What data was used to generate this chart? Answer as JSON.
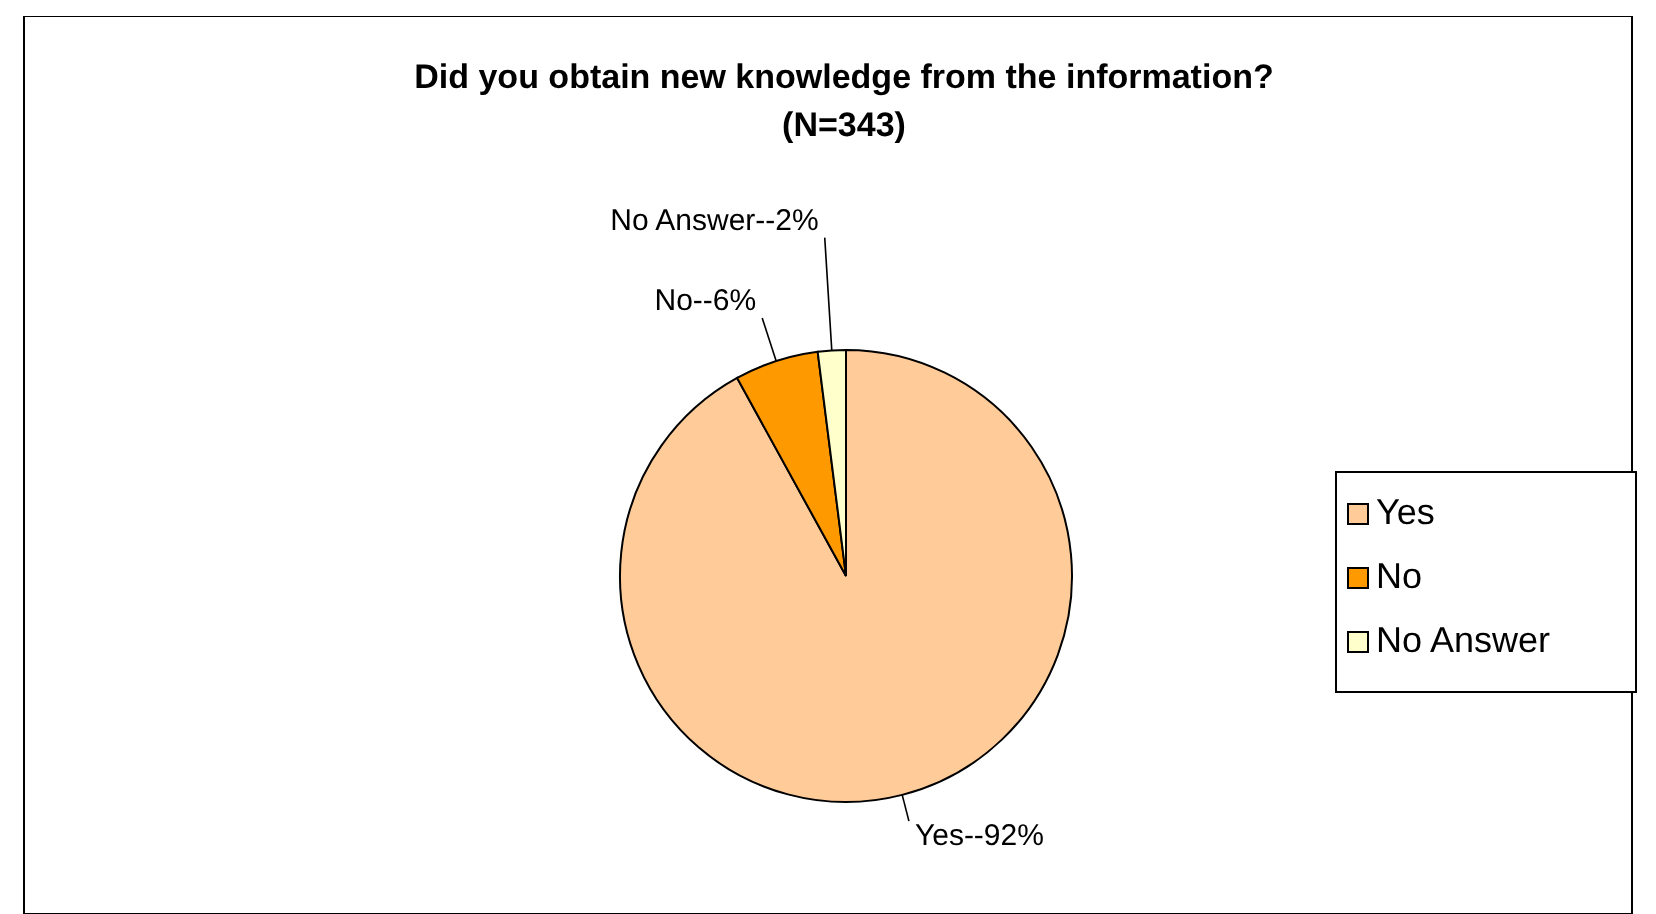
{
  "chart_data": {
    "type": "pie",
    "title": "Did you obtain new knowledge from the information?\n(N=343)",
    "categories": [
      "Yes",
      "No",
      "No Answer"
    ],
    "values": [
      92,
      6,
      2
    ],
    "colors": [
      "#ffcc99",
      "#ff9900",
      "#ffffcc"
    ],
    "value_labels": [
      "Yes--92%",
      "No--6%",
      "No Answer--2%"
    ],
    "legend": "right"
  }
}
